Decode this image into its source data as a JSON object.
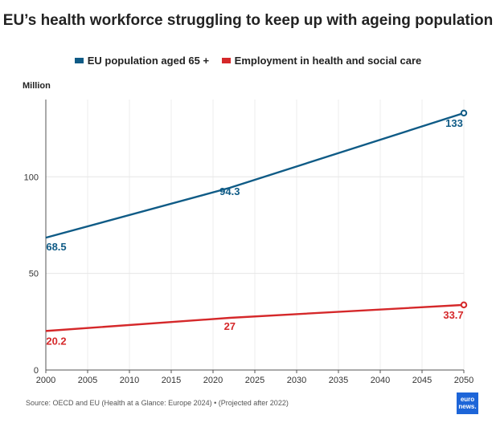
{
  "chart_data": {
    "type": "line",
    "title": "EU’s health workforce struggling to keep up with ageing population",
    "ylabel": "Million",
    "xlim": [
      2000,
      2050
    ],
    "ylim": [
      0,
      140
    ],
    "x_ticks": [
      "2000",
      "2005",
      "2010",
      "2015",
      "2020",
      "2025",
      "2030",
      "2035",
      "2040",
      "2045",
      "2050"
    ],
    "y_ticks": [
      "0",
      "50",
      "100"
    ],
    "grid": true,
    "legend_position": "top",
    "series": [
      {
        "name": "EU population aged 65 +",
        "color": "#0f5b86",
        "x": [
          2000,
          2022,
          2050
        ],
        "y": [
          68.5,
          94.3,
          133
        ],
        "labels": [
          "68.5",
          "94.3",
          "133"
        ]
      },
      {
        "name": "Employment in health and social care",
        "color": "#d5282a",
        "x": [
          2000,
          2022,
          2050
        ],
        "y": [
          20.2,
          27,
          33.7
        ],
        "labels": [
          "20.2",
          "27",
          "33.7"
        ]
      }
    ]
  },
  "footer": {
    "source": "Source: OECD and EU (Health at a Glance: Europe 2024) • (Projected after 2022)",
    "logo_line1": "euro",
    "logo_line2": "news."
  }
}
